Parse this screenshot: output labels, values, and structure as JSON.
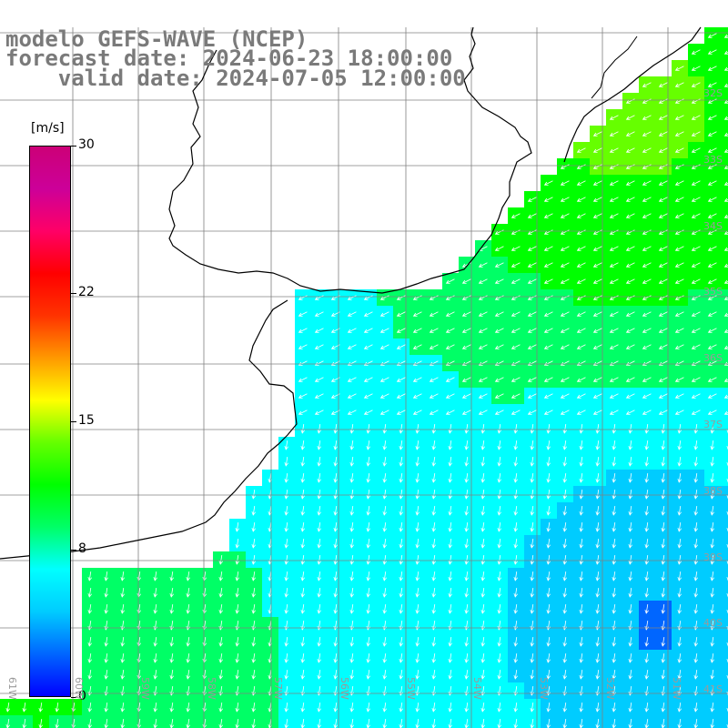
{
  "title": {
    "line1": "modelo GEFS-WAVE (NCEP)",
    "line2": "forecast date: 2024-06-23 18:00:00",
    "line3": "    valid date: 2024-07-05 12:00:00"
  },
  "colorbar": {
    "unit": "[m/s]",
    "ticks": [
      {
        "label": "30",
        "value": 30
      },
      {
        "label": "22",
        "value": 22
      },
      {
        "label": "15",
        "value": 15
      },
      {
        "label": "8",
        "value": 8
      },
      {
        "label": "0",
        "value": 0
      }
    ],
    "min": 0,
    "max": 30,
    "colors": [
      "#0000ff",
      "#0066ff",
      "#00ccff",
      "#00ffff",
      "#00ff66",
      "#00ff00",
      "#66ff00",
      "#ffff00",
      "#ff9900",
      "#ff3300",
      "#ff0000",
      "#ff0066",
      "#cc0099",
      "#cc0077"
    ]
  },
  "axes": {
    "lat_labels": [
      "32S",
      "33S",
      "34S",
      "35S",
      "36S",
      "37S",
      "38S",
      "39S",
      "40S",
      "41S"
    ],
    "lon_labels": [
      "61W",
      "60W",
      "59W",
      "58W",
      "57W",
      "56W",
      "55W",
      "54W",
      "53W",
      "52W",
      "51W"
    ]
  },
  "field": {
    "variable": "wind speed",
    "palette_low": "#0000ff",
    "palette_high": "#00ff00",
    "arrow_color": "#ffffff",
    "coast_color": "#000000",
    "land_color": "#ffffff",
    "grid_color": "#808080"
  }
}
